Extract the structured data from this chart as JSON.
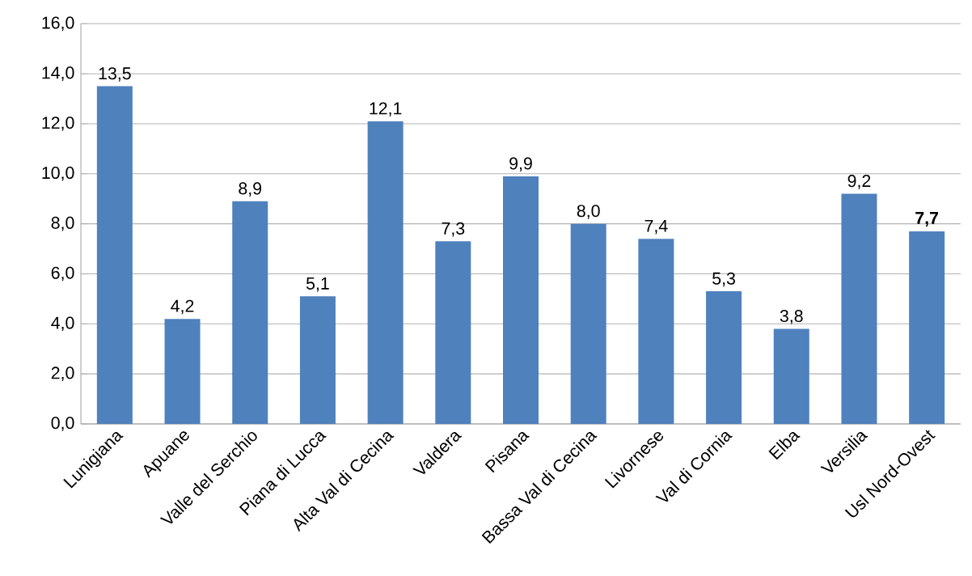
{
  "chart_data": {
    "type": "bar",
    "categories": [
      "Lunigiana",
      "Apuane",
      "Valle del Serchio",
      "Piana di Lucca",
      "Alta Val di Cecina",
      "Valdera",
      "Pisana",
      "Bassa Val di Cecina",
      "Livornese",
      "Val di Cornia",
      "Elba",
      "Versilia",
      "Usl Nord-Ovest"
    ],
    "values": [
      13.5,
      4.2,
      8.9,
      5.1,
      12.1,
      7.3,
      9.9,
      8.0,
      7.4,
      5.3,
      3.8,
      9.2,
      7.7
    ],
    "value_labels": [
      "13,5",
      "4,2",
      "8,9",
      "5,1",
      "12,1",
      "7,3",
      "9,9",
      "8,0",
      "7,4",
      "5,3",
      "3,8",
      "9,2",
      "**7,7**"
    ],
    "color": "#4f81bd",
    "ylim": [
      0,
      16
    ],
    "yticks": [
      {
        "value": 0,
        "label": "0,0"
      },
      {
        "value": 2,
        "label": "2,0"
      },
      {
        "value": 4,
        "label": "4,0"
      },
      {
        "value": 6,
        "label": "6,0"
      },
      {
        "value": 8,
        "label": "8,0"
      },
      {
        "value": 10,
        "label": "10,0"
      },
      {
        "value": 12,
        "label": "12,0"
      },
      {
        "value": 14,
        "label": "14,0"
      },
      {
        "value": 16,
        "label": "16,0"
      }
    ],
    "grid": "y"
  }
}
